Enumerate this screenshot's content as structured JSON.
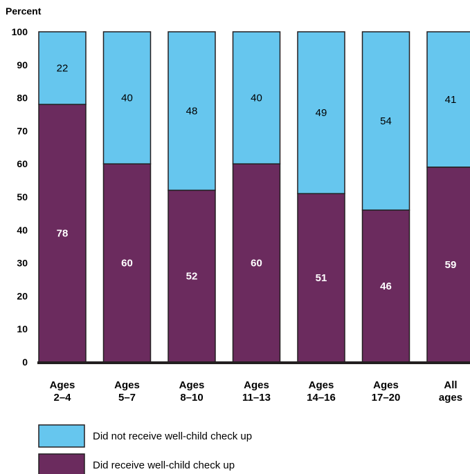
{
  "chart_data": {
    "type": "bar",
    "stacked": true,
    "ylabel": "Percent",
    "ylim": [
      0,
      100
    ],
    "yticks": [
      0,
      10,
      20,
      30,
      40,
      50,
      60,
      70,
      80,
      90,
      100
    ],
    "categories": [
      [
        "Ages",
        "2–4"
      ],
      [
        "Ages",
        "5–7"
      ],
      [
        "Ages",
        "8–10"
      ],
      [
        "Ages",
        "11–13"
      ],
      [
        "Ages",
        "14–16"
      ],
      [
        "Ages",
        "17–20"
      ],
      [
        "All",
        "ages"
      ]
    ],
    "series": [
      {
        "name": "Did receive well-child check up",
        "values": [
          78,
          60,
          52,
          60,
          51,
          46,
          59
        ],
        "color": "#6B2B5E"
      },
      {
        "name": "Did not receive well-child check up",
        "values": [
          22,
          40,
          48,
          40,
          49,
          54,
          41
        ],
        "color": "#66C6EE"
      }
    ],
    "legend_position": "bottom-left"
  }
}
